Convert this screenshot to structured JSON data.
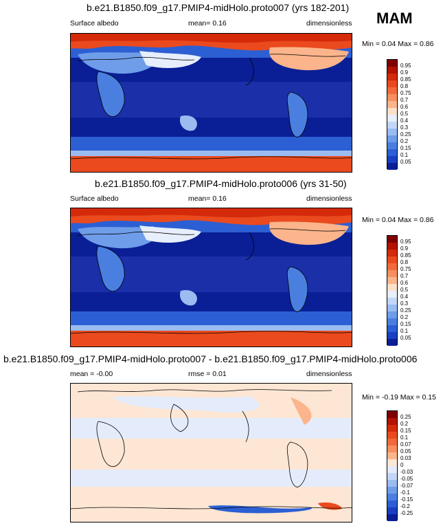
{
  "season": "MAM",
  "panels": [
    {
      "title": "b.e21.B1850.f09_g17.PMIP4-midHolo.proto007 (yrs 182-201)",
      "left_label": "Surface albedo",
      "center_label": "mean=  0.16",
      "right_label": "dimensionless",
      "minmax": "Min =  0.04 Max =  0.86"
    },
    {
      "title": "b.e21.B1850.f09_g17.PMIP4-midHolo.proto006 (yrs 31-50)",
      "left_label": "Surface albedo",
      "center_label": "mean=  0.16",
      "right_label": "dimensionless",
      "minmax": "Min =  0.04 Max =  0.86"
    },
    {
      "title": "b.e21.B1850.f09_g17.PMIP4-midHolo.proto007 - b.e21.B1850.f09_g17.PMIP4-midHolo.proto006",
      "left_label": "mean =  -0.00",
      "center_label": "rmse =  0.01",
      "right_label": "dimensionless",
      "minmax": "Min = -0.19 Max =  0.15"
    }
  ],
  "colorbar_abs": {
    "labels": [
      "0.95",
      "0.9",
      "0.85",
      "0.8",
      "0.75",
      "0.7",
      "0.6",
      "0.5",
      "0.4",
      "0.3",
      "0.25",
      "0.2",
      "0.15",
      "0.1",
      "0.05"
    ],
    "colors": [
      "#7f0000",
      "#b31200",
      "#d42a0a",
      "#ea4a1e",
      "#f26a3a",
      "#f78f5e",
      "#fbb48b",
      "#fde0c8",
      "#e7eefc",
      "#c4d6f7",
      "#9bbcf1",
      "#6f9de9",
      "#4a7fe0",
      "#2c5fd3",
      "#1a3fc0",
      "#0a1f96"
    ]
  },
  "colorbar_diff": {
    "labels": [
      "0.25",
      "0.2",
      "0.15",
      "0.1",
      "0.07",
      "0.05",
      "0.03",
      "0",
      "-0.03",
      "-0.05",
      "-0.07",
      "-0.1",
      "-0.15",
      "-0.2",
      "-0.25"
    ],
    "colors": [
      "#7f0000",
      "#b31200",
      "#d42a0a",
      "#ea4a1e",
      "#f26a3a",
      "#f78f5e",
      "#fbb48b",
      "#fde6d4",
      "#e4ecfb",
      "#c4d6f7",
      "#9bbcf1",
      "#6f9de9",
      "#4a7fe0",
      "#2c5fd3",
      "#1a3fc0",
      "#0a1f96"
    ]
  }
}
